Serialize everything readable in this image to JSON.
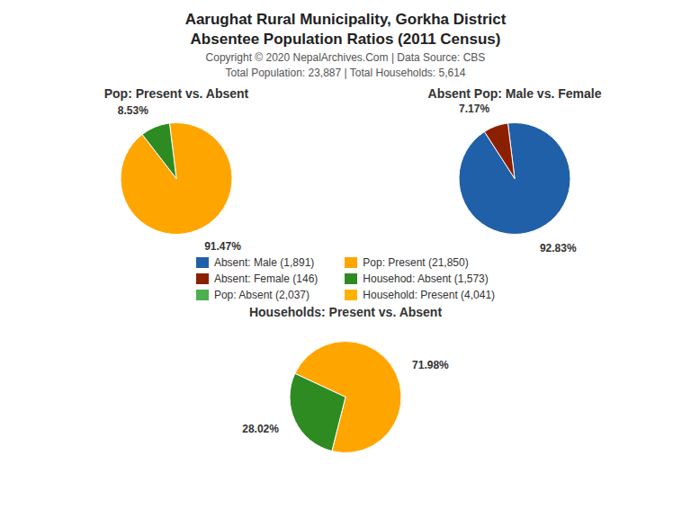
{
  "title": "Aarughat Rural Municipality, Gorkha District",
  "subtitle": "Absentee Population Ratios (2011 Census)",
  "annotations": [
    "Copyright © 2020 NepalArchives.Com | Data Source: CBS",
    "Total Population: 23,887 | Total Households: 5,614"
  ],
  "series": [
    {
      "name": "Absent: Male (1,891)",
      "color": "#2060A8"
    },
    {
      "name": "Absent: Female (146)",
      "color": "#8B2000"
    },
    {
      "name": "Pop: Absent (2,037)",
      "color": "#4CAF50"
    },
    {
      "name": "Pop: Present (21,850)",
      "color": "#FFA500"
    },
    {
      "name": "Househod: Absent (1,573)",
      "color": "#2E8B22"
    },
    {
      "name": "Household: Present (4,041)",
      "color": "#FFB300"
    }
  ],
  "chart_data": [
    {
      "type": "pie",
      "title": "Pop: Present vs. Absent",
      "values": [
        91.47,
        8.53
      ],
      "value_labels": [
        "91.47%",
        "8.53%"
      ],
      "colors": [
        "#FFA500",
        "#2E8B22"
      ],
      "data_labels": true
    },
    {
      "type": "pie",
      "title": "Absent Pop: Male vs. Female",
      "values": [
        92.83,
        7.17
      ],
      "value_labels": [
        "92.83%",
        "7.17%"
      ],
      "colors": [
        "#2060A8",
        "#8B2000"
      ],
      "data_labels": true
    },
    {
      "type": "pie",
      "title": "Households: Present vs. Absent",
      "values": [
        71.98,
        28.02
      ],
      "value_labels": [
        "71.98%",
        "28.02%"
      ],
      "colors": [
        "#FFA500",
        "#2E8B22"
      ],
      "data_labels": true
    }
  ]
}
